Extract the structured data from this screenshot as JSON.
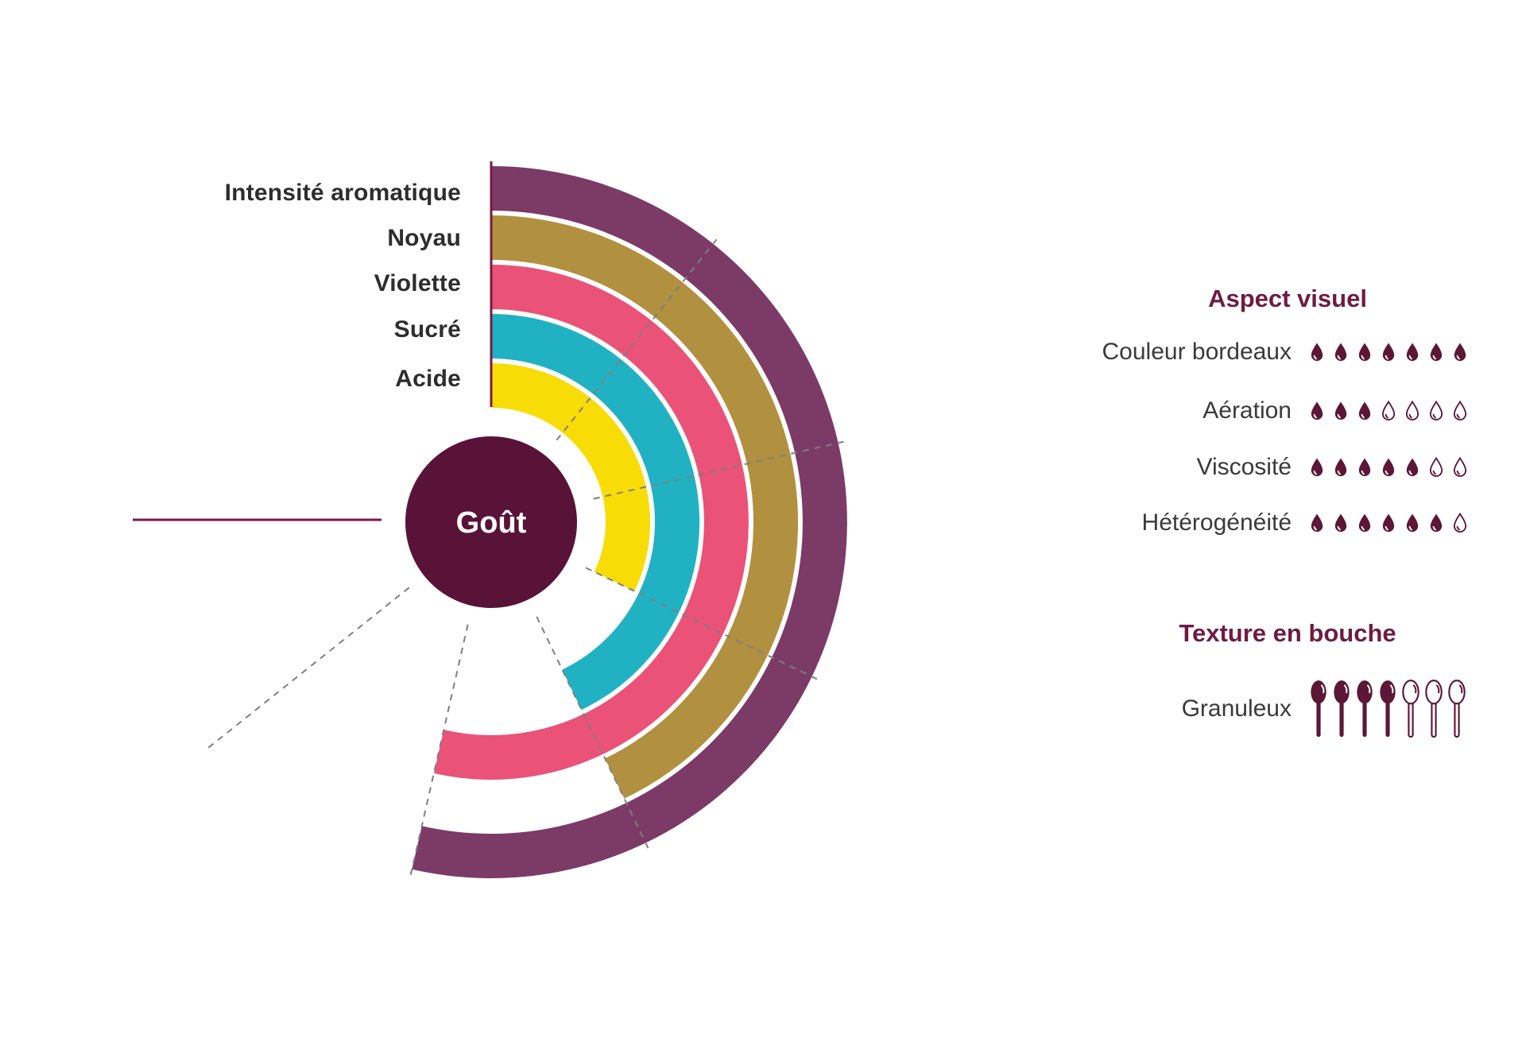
{
  "colors": {
    "maroon": "#5a1338",
    "accent_line": "#7a1a42",
    "title": "#6e1b42",
    "grid": "#7f7f7f",
    "label": "#2d2d2d",
    "panel_label": "#3a3a3a",
    "icon": "#5c1636"
  },
  "chart_data": [
    {
      "type": "radial-bar",
      "center_label": "Goût",
      "max": 7,
      "angle_span_deg": 270,
      "start_angle_deg": 0,
      "direction": "clockwise-from-top",
      "categories": [
        "Intensité aromatique",
        "Noyau",
        "Violette",
        "Sucré",
        "Acide"
      ],
      "values": [
        5,
        4,
        5,
        4,
        3
      ],
      "colors": [
        "#7c3a67",
        "#b19040",
        "#ea5277",
        "#20b2c2",
        "#f8dc05"
      ],
      "ring_order": "outermost-to-innermost",
      "grid": "dashed radial line at each unit 1-6, solid start line at 0 (top), solid end line at 7 (left)"
    },
    {
      "type": "pictogram",
      "title": "Aspect visuel",
      "icon": "drop",
      "max": 7,
      "categories": [
        "Couleur bordeaux",
        "Aération",
        "Viscosité",
        "Hétérogénéité"
      ],
      "values": [
        7,
        3,
        5,
        6
      ]
    },
    {
      "type": "pictogram",
      "title": "Texture en bouche",
      "icon": "spoon",
      "max": 7,
      "categories": [
        "Granuleux"
      ],
      "values": [
        4
      ]
    }
  ]
}
